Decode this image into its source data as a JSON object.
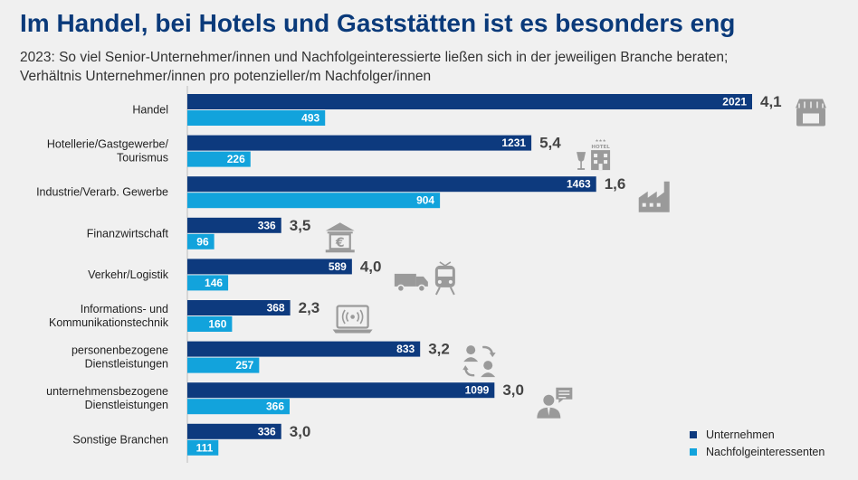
{
  "title": "Im Handel, bei Hotels und Gaststätten ist es besonders eng",
  "subtitle_line1": "2023: So viel Senior-Unternehmer/innen und Nachfolgeinteressierte ließen sich in der jeweiligen Branche beraten;",
  "subtitle_line2": "Verhältnis Unternehmer/innen pro potenzieller/m Nachfolger/innen",
  "colors": {
    "unternehmen": "#0d3a7e",
    "nachfolger": "#12a3dc",
    "background": "#f0f0f0",
    "icon": "#9a9a9a"
  },
  "chart_data": {
    "type": "bar",
    "orientation": "horizontal",
    "title": "Im Handel, bei Hotels und Gaststätten ist es besonders eng",
    "categories": [
      [
        "Handel"
      ],
      [
        "Hotellerie/Gastgewerbe/",
        "Tourismus"
      ],
      [
        "Industrie/Verarb. Gewerbe"
      ],
      [
        "Finanzwirtschaft"
      ],
      [
        "Verkehr/Logistik"
      ],
      [
        "Informations- und",
        "Kommunikationstechnik"
      ],
      [
        "personenbezogene",
        "Dienstleistungen"
      ],
      [
        "unternehmensbezogene",
        "Dienstleistungen"
      ],
      [
        "Sonstige Branchen"
      ]
    ],
    "series": [
      {
        "name": "Unternehmen",
        "values": [
          2021,
          1231,
          1463,
          336,
          589,
          368,
          833,
          1099,
          336
        ]
      },
      {
        "name": "Nachfolgeinteressenten",
        "values": [
          493,
          226,
          904,
          96,
          146,
          160,
          257,
          366,
          111
        ]
      }
    ],
    "ratios": [
      "4,1",
      "5,4",
      "1,6",
      "3,5",
      "4,0",
      "2,3",
      "3,2",
      "3,0",
      "3,0"
    ],
    "icons": [
      "store-icon",
      "hotel-icon",
      "factory-icon",
      "bank-icon",
      "transport-icon",
      "laptop-icon",
      "people-exchange-icon",
      "businessman-chat-icon",
      ""
    ],
    "xlim": [
      0,
      2021
    ],
    "legend_position": "bottom-right"
  }
}
